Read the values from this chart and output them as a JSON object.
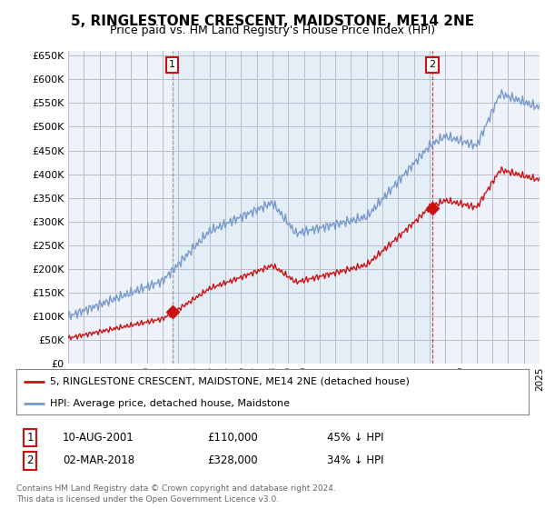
{
  "title": "5, RINGLESTONE CRESCENT, MAIDSTONE, ME14 2NE",
  "subtitle": "Price paid vs. HM Land Registry's House Price Index (HPI)",
  "title_fontsize": 11,
  "subtitle_fontsize": 9,
  "background_color": "#ffffff",
  "plot_bg_color": "#eef3fb",
  "grid_color": "#bbbbcc",
  "hpi_color": "#7799cc",
  "price_color": "#cc1111",
  "ylim": [
    0,
    660000
  ],
  "yticks": [
    0,
    50000,
    100000,
    150000,
    200000,
    250000,
    300000,
    350000,
    400000,
    450000,
    500000,
    550000,
    600000,
    650000
  ],
  "sale1_year": 2001.625,
  "sale1_value": 110000,
  "sale2_year": 2018.167,
  "sale2_value": 328000,
  "legend_line1": "5, RINGLESTONE CRESCENT, MAIDSTONE, ME14 2NE (detached house)",
  "legend_line2": "HPI: Average price, detached house, Maidstone",
  "table_row1": [
    "1",
    "10-AUG-2001",
    "£110,000",
    "45% ↓ HPI"
  ],
  "table_row2": [
    "2",
    "02-MAR-2018",
    "£328,000",
    "34% ↓ HPI"
  ],
  "footer": "Contains HM Land Registry data © Crown copyright and database right 2024.\nThis data is licensed under the Open Government Licence v3.0.",
  "xmin": 1995,
  "xmax": 2025
}
